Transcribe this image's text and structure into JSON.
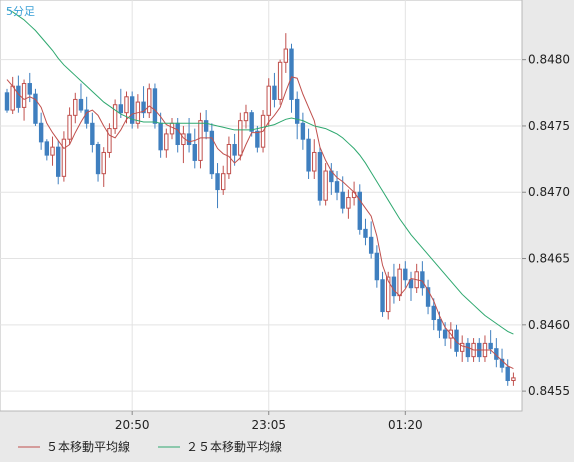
{
  "chart_data": {
    "type": "candlestick",
    "timeframe_label": "5分足",
    "y_ticks": [
      "0.8455",
      "0.8460",
      "0.8465",
      "0.8470",
      "0.8475",
      "0.8480"
    ],
    "x_ticks": [
      "20:50",
      "23:05",
      "01:20"
    ],
    "ylim": [
      0.84535,
      0.84845
    ],
    "grid": true,
    "up_color": "#c0504d",
    "down_color": "#3f7fbf",
    "candles": [
      [
        0.84775,
        0.84778,
        0.8476,
        0.84762
      ],
      [
        0.84762,
        0.84787,
        0.84759,
        0.8478
      ],
      [
        0.8478,
        0.84788,
        0.8476,
        0.84764
      ],
      [
        0.84764,
        0.84785,
        0.84754,
        0.84782
      ],
      [
        0.84782,
        0.8479,
        0.84768,
        0.84774
      ],
      [
        0.84774,
        0.84778,
        0.8475,
        0.84752
      ],
      [
        0.84752,
        0.8476,
        0.84732,
        0.84738
      ],
      [
        0.84738,
        0.8474,
        0.84724,
        0.84728
      ],
      [
        0.84728,
        0.84742,
        0.8472,
        0.84734
      ],
      [
        0.84734,
        0.84739,
        0.84706,
        0.84712
      ],
      [
        0.84712,
        0.84746,
        0.84708,
        0.8474
      ],
      [
        0.8474,
        0.84764,
        0.84736,
        0.84758
      ],
      [
        0.84758,
        0.84775,
        0.84752,
        0.8477
      ],
      [
        0.8477,
        0.84782,
        0.8476,
        0.84762
      ],
      [
        0.84762,
        0.84772,
        0.84748,
        0.84752
      ],
      [
        0.84752,
        0.8476,
        0.8473,
        0.84736
      ],
      [
        0.84736,
        0.84738,
        0.84708,
        0.84714
      ],
      [
        0.84714,
        0.84734,
        0.84704,
        0.8473
      ],
      [
        0.8473,
        0.84752,
        0.84726,
        0.84748
      ],
      [
        0.84748,
        0.8477,
        0.84744,
        0.84766
      ],
      [
        0.84766,
        0.84778,
        0.84756,
        0.8476
      ],
      [
        0.8476,
        0.84776,
        0.84752,
        0.84772
      ],
      [
        0.84772,
        0.84776,
        0.84748,
        0.84752
      ],
      [
        0.84752,
        0.84774,
        0.84748,
        0.84768
      ],
      [
        0.84768,
        0.8478,
        0.84756,
        0.8476
      ],
      [
        0.8476,
        0.84782,
        0.84756,
        0.84778
      ],
      [
        0.84778,
        0.84782,
        0.84748,
        0.84752
      ],
      [
        0.84752,
        0.8476,
        0.84726,
        0.84732
      ],
      [
        0.84732,
        0.84748,
        0.84726,
        0.84744
      ],
      [
        0.84744,
        0.84756,
        0.8474,
        0.84752
      ],
      [
        0.84752,
        0.84756,
        0.8473,
        0.84736
      ],
      [
        0.84736,
        0.8475,
        0.84722,
        0.84744
      ],
      [
        0.84744,
        0.84756,
        0.8473,
        0.84736
      ],
      [
        0.84736,
        0.84748,
        0.84718,
        0.84724
      ],
      [
        0.84724,
        0.8476,
        0.84718,
        0.84754
      ],
      [
        0.84754,
        0.84762,
        0.8474,
        0.84746
      ],
      [
        0.84746,
        0.84752,
        0.8471,
        0.84714
      ],
      [
        0.84714,
        0.84722,
        0.84688,
        0.84702
      ],
      [
        0.84702,
        0.8472,
        0.84698,
        0.84714
      ],
      [
        0.84714,
        0.84742,
        0.8471,
        0.84736
      ],
      [
        0.84736,
        0.84744,
        0.8472,
        0.84728
      ],
      [
        0.84728,
        0.8476,
        0.84724,
        0.84754
      ],
      [
        0.84754,
        0.84766,
        0.84748,
        0.8476
      ],
      [
        0.8476,
        0.84762,
        0.84742,
        0.84746
      ],
      [
        0.84746,
        0.8475,
        0.8473,
        0.84734
      ],
      [
        0.84734,
        0.84762,
        0.8473,
        0.84758
      ],
      [
        0.84758,
        0.84786,
        0.8475,
        0.8478
      ],
      [
        0.8478,
        0.8479,
        0.84764,
        0.8477
      ],
      [
        0.8477,
        0.848,
        0.84766,
        0.84798
      ],
      [
        0.84798,
        0.8482,
        0.8479,
        0.84808
      ],
      [
        0.84808,
        0.84812,
        0.8476,
        0.8477
      ],
      [
        0.8477,
        0.84776,
        0.8474,
        0.84752
      ],
      [
        0.84752,
        0.8476,
        0.84732,
        0.8474
      ],
      [
        0.8474,
        0.84748,
        0.8471,
        0.84716
      ],
      [
        0.84716,
        0.8474,
        0.8471,
        0.8473
      ],
      [
        0.8473,
        0.84734,
        0.8469,
        0.84694
      ],
      [
        0.84694,
        0.84722,
        0.8469,
        0.84716
      ],
      [
        0.84716,
        0.84722,
        0.84698,
        0.84708
      ],
      [
        0.84708,
        0.84716,
        0.84694,
        0.847
      ],
      [
        0.847,
        0.84712,
        0.84684,
        0.84688
      ],
      [
        0.84688,
        0.84702,
        0.8468,
        0.84696
      ],
      [
        0.84696,
        0.84708,
        0.8469,
        0.847
      ],
      [
        0.847,
        0.84706,
        0.84668,
        0.84672
      ],
      [
        0.84672,
        0.8468,
        0.8466,
        0.84666
      ],
      [
        0.84666,
        0.84678,
        0.8465,
        0.84654
      ],
      [
        0.84654,
        0.8466,
        0.84628,
        0.84634
      ],
      [
        0.84634,
        0.8464,
        0.84606,
        0.8461
      ],
      [
        0.8461,
        0.8464,
        0.84604,
        0.84636
      ],
      [
        0.84636,
        0.84646,
        0.84616,
        0.84622
      ],
      [
        0.84622,
        0.84646,
        0.84618,
        0.84642
      ],
      [
        0.84642,
        0.84648,
        0.84628,
        0.84634
      ],
      [
        0.84634,
        0.8464,
        0.84618,
        0.84628
      ],
      [
        0.84628,
        0.84646,
        0.84624,
        0.8464
      ],
      [
        0.8464,
        0.84648,
        0.84622,
        0.84628
      ],
      [
        0.84628,
        0.84634,
        0.84608,
        0.84614
      ],
      [
        0.84614,
        0.8462,
        0.84596,
        0.84604
      ],
      [
        0.84604,
        0.8461,
        0.8459,
        0.84596
      ],
      [
        0.84596,
        0.84602,
        0.84584,
        0.8459
      ],
      [
        0.8459,
        0.84602,
        0.84582,
        0.84596
      ],
      [
        0.84596,
        0.846,
        0.84576,
        0.8458
      ],
      [
        0.8458,
        0.84592,
        0.84572,
        0.84586
      ],
      [
        0.84586,
        0.8459,
        0.84572,
        0.84576
      ],
      [
        0.84576,
        0.8459,
        0.84572,
        0.84586
      ],
      [
        0.84586,
        0.8459,
        0.84572,
        0.84576
      ],
      [
        0.84576,
        0.84592,
        0.84572,
        0.84586
      ],
      [
        0.84586,
        0.84596,
        0.84578,
        0.84582
      ],
      [
        0.84582,
        0.8459,
        0.84568,
        0.84574
      ],
      [
        0.84574,
        0.84582,
        0.84564,
        0.84568
      ],
      [
        0.84568,
        0.84574,
        0.84554,
        0.84558
      ],
      [
        0.84558,
        0.84564,
        0.84554,
        0.8456
      ]
    ],
    "series": [
      {
        "name": "５本移動平均線",
        "color": "#c0504d",
        "values": [
          0.84785,
          0.8478,
          0.84774,
          0.8477,
          0.84772,
          0.8477,
          0.84764,
          0.84752,
          0.84745,
          0.84739,
          0.84733,
          0.84736,
          0.84745,
          0.84753,
          0.8476,
          0.84762,
          0.84758,
          0.8475,
          0.84743,
          0.84741,
          0.84747,
          0.84755,
          0.84759,
          0.8476,
          0.84761,
          0.84765,
          0.84762,
          0.84757,
          0.84751,
          0.84749,
          0.84747,
          0.84741,
          0.84738,
          0.84739,
          0.84741,
          0.84741,
          0.84741,
          0.84733,
          0.84729,
          0.84727,
          0.84722,
          0.84726,
          0.84736,
          0.84745,
          0.84745,
          0.84746,
          0.84753,
          0.84758,
          0.84764,
          0.84776,
          0.84787,
          0.84786,
          0.84774,
          0.84764,
          0.84754,
          0.84734,
          0.84724,
          0.84716,
          0.84711,
          0.84708,
          0.84704,
          0.847,
          0.84694,
          0.84688,
          0.84682,
          0.84667,
          0.84645,
          0.84633,
          0.84626,
          0.84622,
          0.84627,
          0.84635,
          0.84634,
          0.84633,
          0.84626,
          0.84618,
          0.84607,
          0.84598,
          0.84593,
          0.84587,
          0.84584,
          0.84583,
          0.84581,
          0.84581,
          0.84581,
          0.84581,
          0.84577,
          0.84573,
          0.84569,
          0.84567
        ]
      },
      {
        "name": "２５本移動平均線",
        "color": "#2ea86f",
        "values": [
          0.84838,
          0.84836,
          0.84833,
          0.8483,
          0.84826,
          0.84822,
          0.84817,
          0.84812,
          0.84807,
          0.84801,
          0.84796,
          0.84792,
          0.84788,
          0.84784,
          0.8478,
          0.84776,
          0.84772,
          0.84768,
          0.84765,
          0.84762,
          0.84759,
          0.84757,
          0.84755,
          0.84754,
          0.84753,
          0.84753,
          0.84753,
          0.84752,
          0.84752,
          0.84752,
          0.84752,
          0.84752,
          0.84752,
          0.84752,
          0.84752,
          0.84752,
          0.84751,
          0.8475,
          0.84749,
          0.84748,
          0.84747,
          0.84747,
          0.84747,
          0.84747,
          0.84748,
          0.84749,
          0.8475,
          0.84751,
          0.84753,
          0.84755,
          0.84756,
          0.84755,
          0.84754,
          0.84752,
          0.8475,
          0.84749,
          0.84748,
          0.84746,
          0.84744,
          0.84741,
          0.84737,
          0.84733,
          0.84728,
          0.84722,
          0.84715,
          0.84708,
          0.84701,
          0.84694,
          0.84687,
          0.8468,
          0.84674,
          0.84668,
          0.84663,
          0.84658,
          0.84653,
          0.84648,
          0.84643,
          0.84638,
          0.84633,
          0.84628,
          0.84623,
          0.84619,
          0.84615,
          0.84611,
          0.84607,
          0.84604,
          0.84601,
          0.84598,
          0.84595,
          0.84593
        ]
      }
    ]
  }
}
